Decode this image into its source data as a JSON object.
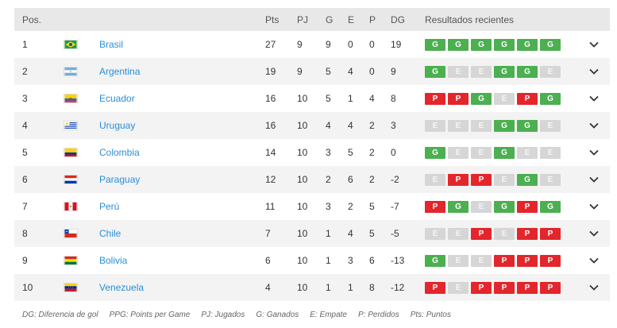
{
  "header": {
    "pos": "Pos.",
    "pts": "Pts",
    "pj": "PJ",
    "g": "G",
    "e": "E",
    "p": "P",
    "dg": "DG",
    "results": "Resultados recientes"
  },
  "colors": {
    "win": "#4caf50",
    "draw": "#d6d6d6",
    "loss": "#e3262b",
    "team_link": "#2a8fd6"
  },
  "rows": [
    {
      "pos": "1",
      "flag": "brazil-flag-icon",
      "team": "Brasil",
      "pts": "27",
      "pj": "9",
      "g": "9",
      "e": "0",
      "p": "0",
      "dg": "19",
      "results": [
        "G",
        "G",
        "G",
        "G",
        "G",
        "G"
      ]
    },
    {
      "pos": "2",
      "flag": "argentina-flag-icon",
      "team": "Argentina",
      "pts": "19",
      "pj": "9",
      "g": "5",
      "e": "4",
      "p": "0",
      "dg": "9",
      "results": [
        "G",
        "E",
        "E",
        "G",
        "G",
        "E"
      ]
    },
    {
      "pos": "3",
      "flag": "ecuador-flag-icon",
      "team": "Ecuador",
      "pts": "16",
      "pj": "10",
      "g": "5",
      "e": "1",
      "p": "4",
      "dg": "8",
      "results": [
        "P",
        "P",
        "G",
        "E",
        "P",
        "G"
      ]
    },
    {
      "pos": "4",
      "flag": "uruguay-flag-icon",
      "team": "Uruguay",
      "pts": "16",
      "pj": "10",
      "g": "4",
      "e": "4",
      "p": "2",
      "dg": "3",
      "results": [
        "E",
        "E",
        "E",
        "G",
        "G",
        "E"
      ]
    },
    {
      "pos": "5",
      "flag": "colombia-flag-icon",
      "team": "Colombia",
      "pts": "14",
      "pj": "10",
      "g": "3",
      "e": "5",
      "p": "2",
      "dg": "0",
      "results": [
        "G",
        "E",
        "E",
        "G",
        "E",
        "E"
      ]
    },
    {
      "pos": "6",
      "flag": "paraguay-flag-icon",
      "team": "Paraguay",
      "pts": "12",
      "pj": "10",
      "g": "2",
      "e": "6",
      "p": "2",
      "dg": "-2",
      "results": [
        "E",
        "P",
        "P",
        "E",
        "G",
        "E"
      ]
    },
    {
      "pos": "7",
      "flag": "peru-flag-icon",
      "team": "Perú",
      "pts": "11",
      "pj": "10",
      "g": "3",
      "e": "2",
      "p": "5",
      "dg": "-7",
      "results": [
        "P",
        "G",
        "E",
        "G",
        "P",
        "G"
      ]
    },
    {
      "pos": "8",
      "flag": "chile-flag-icon",
      "team": "Chile",
      "pts": "7",
      "pj": "10",
      "g": "1",
      "e": "4",
      "p": "5",
      "dg": "-5",
      "results": [
        "E",
        "E",
        "P",
        "E",
        "P",
        "P"
      ]
    },
    {
      "pos": "9",
      "flag": "bolivia-flag-icon",
      "team": "Bolivia",
      "pts": "6",
      "pj": "10",
      "g": "1",
      "e": "3",
      "p": "6",
      "dg": "-13",
      "results": [
        "G",
        "E",
        "E",
        "P",
        "P",
        "P"
      ]
    },
    {
      "pos": "10",
      "flag": "venezuela-flag-icon",
      "team": "Venezuela",
      "pts": "4",
      "pj": "10",
      "g": "1",
      "e": "1",
      "p": "8",
      "dg": "-12",
      "results": [
        "P",
        "E",
        "P",
        "P",
        "P",
        "P"
      ]
    }
  ],
  "legend": [
    "DG: Diferencia de gol",
    "PPG: Points per Game",
    "PJ: Jugados",
    "G: Ganados",
    "E: Empate",
    "P: Perdidos",
    "Pts: Puntos"
  ]
}
